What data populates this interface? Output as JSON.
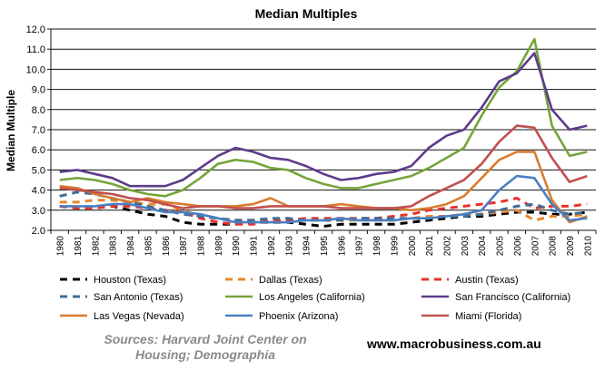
{
  "chart_data": {
    "type": "line",
    "title": "Median Multiples",
    "xlabel": "",
    "ylabel": "Median Multiple",
    "ylim": [
      2.0,
      12.0
    ],
    "yticks": [
      "2.0",
      "3.0",
      "4.0",
      "5.0",
      "6.0",
      "7.0",
      "8.0",
      "9.0",
      "10.0",
      "11.0",
      "12.0"
    ],
    "grid": true,
    "legend_position": "bottom",
    "x": [
      1980,
      1981,
      1982,
      1983,
      1984,
      1985,
      1986,
      1987,
      1988,
      1989,
      1990,
      1991,
      1992,
      1993,
      1994,
      1995,
      1996,
      1997,
      1998,
      1999,
      2000,
      2001,
      2002,
      2003,
      2004,
      2005,
      2006,
      2007,
      2008,
      2009,
      2010
    ],
    "series": [
      {
        "name": "Houston (Texas)",
        "color": "#000000",
        "dash": true,
        "values": [
          3.2,
          3.1,
          3.2,
          3.2,
          3.0,
          2.8,
          2.7,
          2.4,
          2.3,
          2.3,
          2.3,
          2.4,
          2.4,
          2.4,
          2.3,
          2.2,
          2.3,
          2.3,
          2.3,
          2.3,
          2.4,
          2.5,
          2.6,
          2.7,
          2.7,
          2.8,
          2.9,
          2.9,
          2.8,
          2.8,
          2.9
        ]
      },
      {
        "name": "Dallas (Texas)",
        "color": "#e4882b",
        "dash": true,
        "values": [
          3.4,
          3.4,
          3.5,
          3.5,
          3.4,
          3.3,
          3.3,
          3.0,
          2.7,
          2.6,
          2.5,
          2.5,
          2.5,
          2.5,
          2.5,
          2.5,
          2.5,
          2.5,
          2.5,
          2.5,
          2.6,
          2.7,
          2.7,
          2.8,
          2.8,
          2.9,
          3.0,
          2.5,
          2.7,
          2.7,
          2.8
        ]
      },
      {
        "name": "Austin (Texas)",
        "color": "#e8322b",
        "dash": true,
        "values": [
          3.2,
          3.1,
          3.1,
          3.2,
          3.2,
          3.1,
          3.0,
          2.9,
          2.6,
          2.4,
          2.3,
          2.3,
          2.5,
          2.5,
          2.6,
          2.6,
          2.6,
          2.6,
          2.6,
          2.7,
          2.8,
          3.0,
          3.1,
          3.2,
          3.3,
          3.4,
          3.6,
          3.1,
          3.2,
          3.2,
          3.3
        ]
      },
      {
        "name": "San Antonio (Texas)",
        "color": "#3f6f99",
        "dash": true,
        "values": [
          3.7,
          3.9,
          3.8,
          3.6,
          3.4,
          3.2,
          3.0,
          2.8,
          2.7,
          2.6,
          2.5,
          2.5,
          2.6,
          2.6,
          2.5,
          2.5,
          2.5,
          2.6,
          2.6,
          2.6,
          2.6,
          2.6,
          2.7,
          2.7,
          2.8,
          3.0,
          3.2,
          3.3,
          3.0,
          2.8,
          2.9
        ]
      },
      {
        "name": "Los Angeles (California)",
        "color": "#76a43a",
        "dash": false,
        "values": [
          4.5,
          4.6,
          4.5,
          4.3,
          4.0,
          3.8,
          3.7,
          4.0,
          4.6,
          5.3,
          5.5,
          5.4,
          5.1,
          5.0,
          4.6,
          4.3,
          4.1,
          4.1,
          4.3,
          4.5,
          4.7,
          5.1,
          5.6,
          6.1,
          7.7,
          9.1,
          9.9,
          11.5,
          7.2,
          5.7,
          5.9
        ]
      },
      {
        "name": "San Francisco (California)",
        "color": "#5e3b8a",
        "dash": false,
        "values": [
          4.9,
          5.0,
          4.8,
          4.6,
          4.2,
          4.2,
          4.2,
          4.5,
          5.1,
          5.7,
          6.1,
          5.9,
          5.6,
          5.5,
          5.2,
          4.8,
          4.5,
          4.6,
          4.8,
          4.9,
          5.2,
          6.1,
          6.7,
          7.0,
          8.1,
          9.4,
          9.8,
          10.8,
          8.0,
          7.0,
          7.2
        ]
      },
      {
        "name": "Las Vegas (Nevada)",
        "color": "#d97c30",
        "dash": false,
        "values": [
          4.2,
          4.1,
          3.8,
          3.6,
          3.4,
          3.6,
          3.4,
          3.3,
          3.2,
          3.2,
          3.2,
          3.3,
          3.6,
          3.2,
          3.2,
          3.2,
          3.3,
          3.2,
          3.1,
          3.1,
          3.0,
          3.1,
          3.3,
          3.7,
          4.6,
          5.5,
          5.9,
          5.9,
          3.5,
          2.4,
          2.7
        ]
      },
      {
        "name": "Phoenix (Arizona)",
        "color": "#4a7fc1",
        "dash": false,
        "values": [
          3.2,
          3.2,
          3.2,
          3.3,
          3.3,
          3.1,
          2.9,
          2.9,
          2.8,
          2.6,
          2.4,
          2.4,
          2.4,
          2.4,
          2.5,
          2.5,
          2.6,
          2.5,
          2.5,
          2.5,
          2.6,
          2.6,
          2.7,
          2.8,
          3.0,
          4.0,
          4.7,
          4.6,
          3.3,
          2.5,
          2.6
        ]
      },
      {
        "name": "Miami (Florida)",
        "color": "#c0504d",
        "dash": false,
        "values": [
          4.1,
          4.0,
          3.9,
          3.8,
          3.6,
          3.5,
          3.3,
          3.1,
          3.2,
          3.2,
          3.1,
          3.1,
          3.2,
          3.2,
          3.2,
          3.2,
          3.1,
          3.1,
          3.1,
          3.1,
          3.2,
          3.7,
          4.1,
          4.5,
          5.3,
          6.4,
          7.2,
          7.1,
          5.6,
          4.4,
          4.7
        ]
      }
    ]
  },
  "footer": {
    "source": "Sources: Harvard Joint Center on Housing; Demographia",
    "website": "www.macrobusiness.com.au"
  }
}
